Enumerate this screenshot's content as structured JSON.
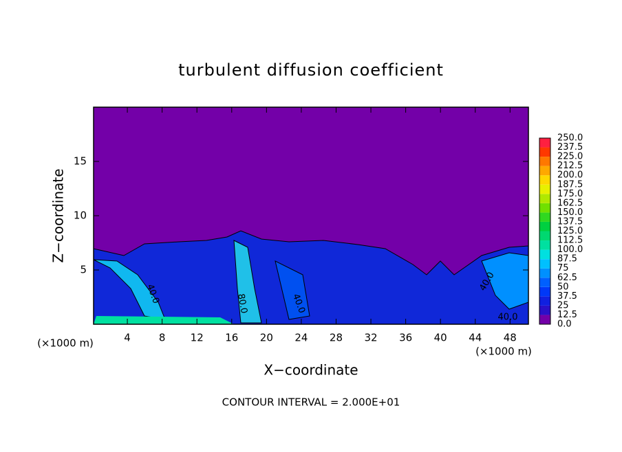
{
  "chart_data": {
    "type": "heatmap",
    "title": "turbulent diffusion coefficient",
    "xlabel": "X−coordinate",
    "ylabel": "Z−coordinate",
    "x_unit": "(×1000 m)",
    "note": "CONTOUR INTERVAL = 2.000E+01",
    "xlim": [
      0,
      50
    ],
    "xticks": [
      4,
      8,
      12,
      16,
      20,
      24,
      28,
      32,
      36,
      40,
      44,
      48
    ],
    "ylim": [
      0,
      20
    ],
    "yticks": [
      5,
      10,
      15
    ],
    "colorbar": {
      "levels": [
        {
          "value": 0,
          "label": "0.0"
        },
        12.5,
        25,
        37.5,
        50,
        62.5,
        75,
        87.5,
        {
          "value": 100,
          "label": "100.0"
        },
        112.5,
        {
          "value": 125,
          "label": "125.0"
        },
        137.5,
        {
          "value": 150,
          "label": "150.0"
        },
        162.5,
        {
          "value": 175,
          "label": "175.0"
        },
        187.5,
        {
          "value": 200,
          "label": "200.0"
        },
        212.5,
        {
          "value": 225,
          "label": "225.0"
        },
        237.5,
        {
          "value": 250,
          "label": "250.0"
        }
      ],
      "colors": [
        "#7300a8",
        "#2a10c8",
        "#1020e0",
        "#0038f8",
        "#0060ff",
        "#0090ff",
        "#00c0ff",
        "#00e0e0",
        "#00e0a0",
        "#00d870",
        "#00d040",
        "#30d820",
        "#70e000",
        "#b0e800",
        "#e8f000",
        "#ffd800",
        "#ffa800",
        "#ff7800",
        "#ff3800",
        "#ff2040"
      ]
    },
    "contour_labels": [
      {
        "value": 40,
        "label": "40.0"
      },
      {
        "value": 80,
        "label": "80.0"
      },
      {
        "value": 40,
        "label": "40.0"
      },
      {
        "value": 40,
        "label": "40.0"
      },
      {
        "value": 40,
        "label": "40.0"
      }
    ]
  }
}
